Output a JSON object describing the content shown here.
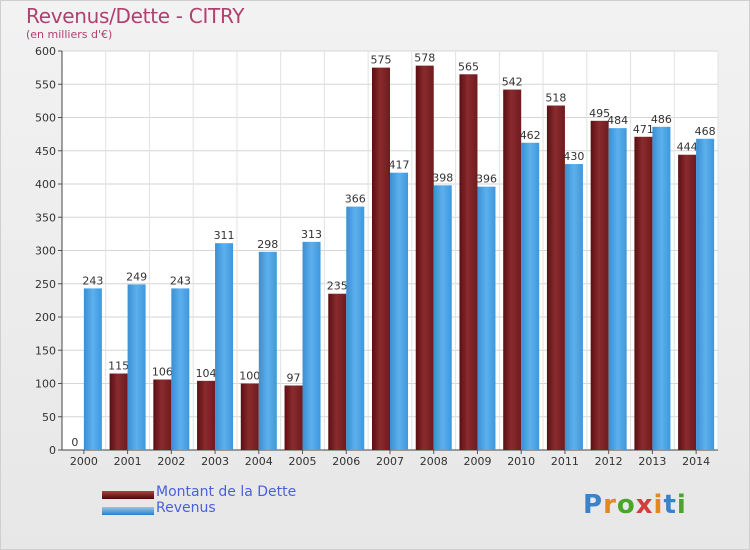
{
  "chart_data": {
    "type": "bar",
    "title": "Revenus/Dette - CITRY",
    "subtitle": "(en milliers d'€)",
    "categories": [
      "2000",
      "2001",
      "2002",
      "2003",
      "2004",
      "2005",
      "2006",
      "2007",
      "2008",
      "2009",
      "2010",
      "2011",
      "2012",
      "2013",
      "2014"
    ],
    "series": [
      {
        "name": "Montant de la Dette",
        "color": "#7a1f22",
        "values": [
          0,
          115,
          106,
          104,
          100,
          97,
          235,
          575,
          578,
          565,
          542,
          518,
          495,
          471,
          444
        ],
        "labels": [
          "0",
          "115",
          "106",
          "104",
          "100",
          "97",
          "235",
          "575",
          "578",
          "565",
          "542",
          "518",
          "495",
          "471",
          "444"
        ]
      },
      {
        "name": "Revenus",
        "color": "#4aa3e3",
        "values": [
          243,
          249,
          243,
          311,
          298,
          313,
          366,
          417,
          398,
          396,
          462,
          430,
          484,
          486,
          468
        ],
        "labels": [
          "243",
          "249",
          "243",
          "311",
          "298",
          "313",
          "366",
          "417",
          "398",
          "396",
          "462",
          "430",
          "484",
          "486",
          "468"
        ]
      }
    ],
    "ylim": [
      0,
      600
    ],
    "yticks": [
      "0",
      "50",
      "100",
      "150",
      "200",
      "250",
      "300",
      "350",
      "400",
      "450",
      "500",
      "550",
      "600"
    ],
    "grid": true,
    "legend_position": "bottom-left"
  },
  "legend": [
    {
      "label": "Montant de la Dette",
      "color": "#7a1f22"
    },
    {
      "label": "Revenus",
      "color": "#4aa3e3"
    }
  ],
  "logo": {
    "text": "Proxiti"
  }
}
